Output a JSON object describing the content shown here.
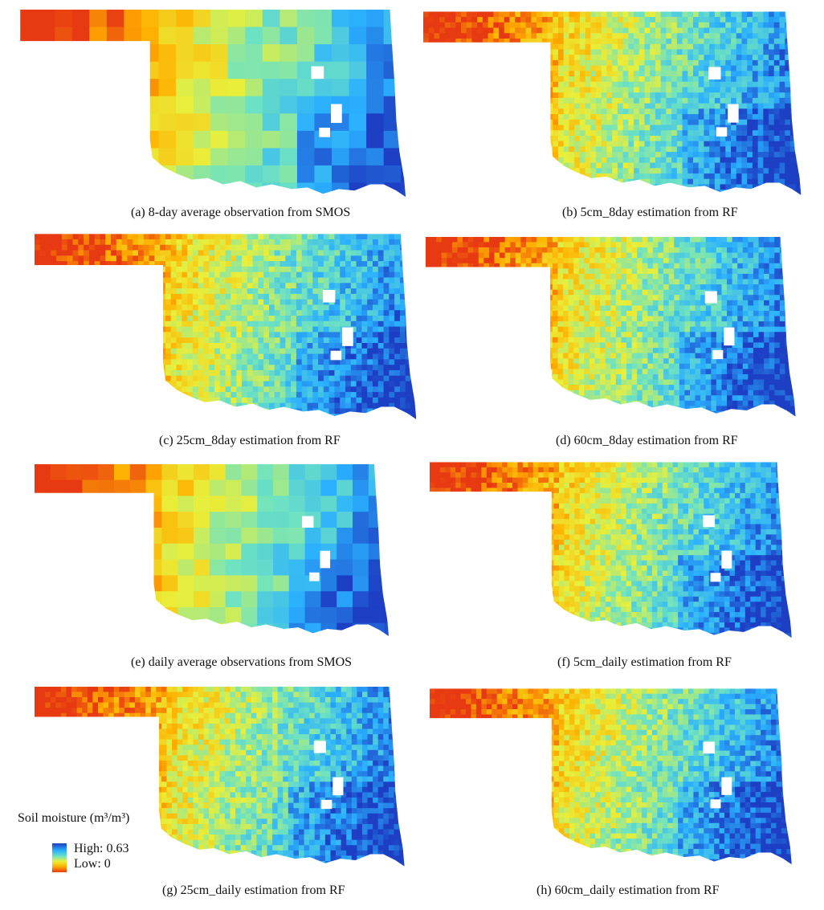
{
  "figure": {
    "panels": [
      {
        "id": "a",
        "caption": "(a) 8-day average observation from SMOS",
        "style": "coarse"
      },
      {
        "id": "b",
        "caption": "(b) 5cm_8day estimation from RF",
        "style": "fine"
      },
      {
        "id": "c",
        "caption": "(c) 25cm_8day estimation from RF",
        "style": "fine"
      },
      {
        "id": "d",
        "caption": "(d) 60cm_8day estimation from RF",
        "style": "fine"
      },
      {
        "id": "e",
        "caption": "(e) daily average observations from SMOS",
        "style": "coarse"
      },
      {
        "id": "f",
        "caption": "(f) 5cm_daily estimation from RF",
        "style": "fine"
      },
      {
        "id": "g",
        "caption": "(g) 25cm_daily estimation from RF",
        "style": "fine"
      },
      {
        "id": "h",
        "caption": "(h) 60cm_daily estimation from RF",
        "style": "fine"
      }
    ],
    "legend": {
      "title": "Soil moisture (m³/m³)",
      "high": "High: 0.63",
      "low": "Low: 0",
      "colors": [
        "#1d3fc4",
        "#2ab0ff",
        "#6fe3c0",
        "#e9ef3a",
        "#ffb000",
        "#e83a12"
      ]
    }
  }
}
